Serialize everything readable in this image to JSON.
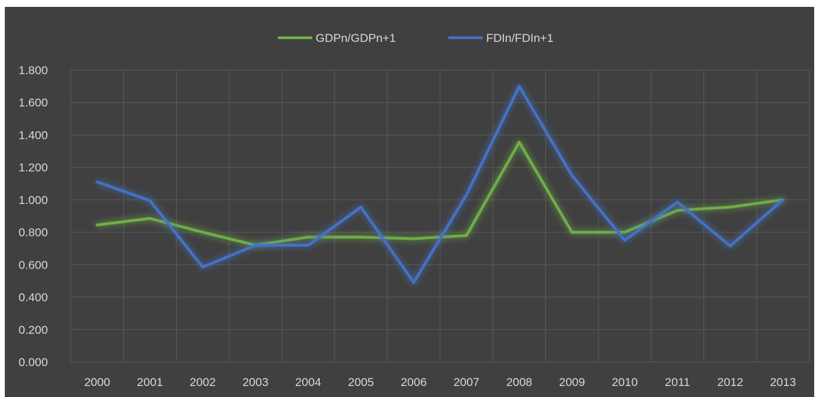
{
  "chart_data": {
    "type": "line",
    "title": "",
    "xlabel": "",
    "ylabel": "",
    "categories": [
      "2000",
      "2001",
      "2002",
      "2003",
      "2004",
      "2005",
      "2006",
      "2007",
      "2008",
      "2009",
      "2010",
      "2011",
      "2012",
      "2013"
    ],
    "series": [
      {
        "name": "GDPn/GDPn+1",
        "color": "#70ad47",
        "values": [
          0.845,
          0.885,
          0.8,
          0.72,
          0.77,
          0.77,
          0.76,
          0.78,
          1.355,
          0.8,
          0.8,
          0.935,
          0.955,
          1.0
        ]
      },
      {
        "name": "FDIn/FDIn+1",
        "color": "#4472c4",
        "values": [
          1.11,
          0.995,
          0.585,
          0.72,
          0.72,
          0.955,
          0.49,
          1.03,
          1.7,
          1.15,
          0.75,
          0.985,
          0.715,
          1.0
        ]
      }
    ],
    "y_ticks": [
      "0.000",
      "0.200",
      "0.400",
      "0.600",
      "0.800",
      "1.000",
      "1.200",
      "1.400",
      "1.600",
      "1.800"
    ],
    "ylim": [
      0,
      1.8
    ],
    "grid": true,
    "legend_position": "top-center",
    "background_color": "#404040"
  }
}
